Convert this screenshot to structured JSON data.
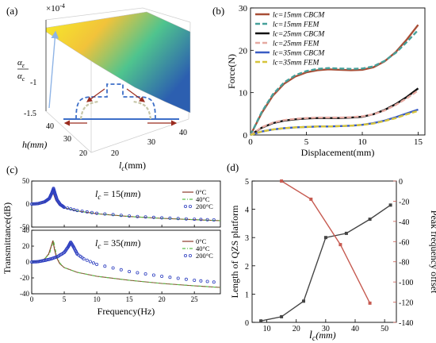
{
  "chart_data": [
    {
      "type": "surface",
      "panel_label": "(a)",
      "z_multiplier": "×10",
      "z_multiplier_exp": "-4",
      "z_label_num": "α",
      "z_label_num_sub": "ε",
      "z_label_den": "α",
      "z_label_den_sub": "c",
      "z_ticks": [
        "-1",
        "-1.5"
      ],
      "h_label": "h(mm)",
      "h_ticks": [
        "40",
        "30",
        "20"
      ],
      "lc_label_main": "l",
      "lc_label_sub": "c",
      "lc_label_unit": "(mm)",
      "lc_ticks": [
        "20",
        "30",
        "40"
      ],
      "colors": {
        "high": "#f7ee27",
        "mid": "#33b89a",
        "low": "#2c5fb0",
        "arrow": "#9b2c1f",
        "structure": "#3d6fc8",
        "strut": "#c6c6a8"
      }
    },
    {
      "type": "line",
      "panel_label": "(b)",
      "xlabel": "Displacement(mm)",
      "ylabel": "Force(N)",
      "xlim": [
        0,
        15.6
      ],
      "ylim": [
        0,
        30
      ],
      "xticks": [
        "0",
        "5",
        "10",
        "15"
      ],
      "yticks": [
        "0",
        "10",
        "20",
        "30"
      ],
      "series": [
        {
          "name": "lc=15mm CBCM",
          "color": "#a84e36",
          "style": "solid",
          "x": [
            0,
            1,
            2,
            3,
            4,
            5,
            6,
            7,
            8,
            9,
            10,
            11,
            12,
            13,
            14,
            15
          ],
          "y": [
            0,
            5.2,
            9.3,
            12.1,
            13.8,
            14.8,
            15.3,
            15.5,
            15.4,
            15.3,
            15.4,
            16,
            17.4,
            19.6,
            22.6,
            26
          ]
        },
        {
          "name": "lc=15mm FEM",
          "color": "#46a09a",
          "style": "dashed",
          "x": [
            0,
            1,
            2,
            3,
            4,
            5,
            6,
            7,
            8,
            9,
            10,
            11,
            12,
            13,
            14,
            15
          ],
          "y": [
            0,
            5.4,
            9.6,
            12.4,
            14.1,
            15.1,
            15.6,
            15.8,
            15.7,
            15.6,
            15.7,
            16.2,
            17.5,
            19.4,
            22,
            24.8
          ]
        },
        {
          "name": "lc=25mm CBCM",
          "color": "#111111",
          "style": "solid",
          "x": [
            0,
            1,
            2,
            3,
            4,
            5,
            6,
            7,
            8,
            9,
            10,
            11,
            12,
            13,
            14,
            15
          ],
          "y": [
            0,
            1.7,
            2.8,
            3.4,
            3.7,
            3.9,
            4.0,
            4.0,
            4.0,
            4.1,
            4.3,
            4.9,
            5.9,
            7.3,
            9.0,
            11.0
          ]
        },
        {
          "name": "lc=25mm FEM",
          "color": "#e6a9a1",
          "style": "dashed",
          "x": [
            0,
            1,
            2,
            3,
            4,
            5,
            6,
            7,
            8,
            9,
            10,
            11,
            12,
            13,
            14,
            15
          ],
          "y": [
            0,
            1.8,
            2.9,
            3.5,
            3.8,
            4.0,
            4.1,
            4.1,
            4.1,
            4.2,
            4.4,
            4.9,
            5.8,
            7.1,
            8.7,
            10.5
          ]
        },
        {
          "name": "lc=35mm CBCM",
          "color": "#3a5cc4",
          "style": "solid",
          "x": [
            0,
            1,
            2,
            3,
            4,
            5,
            6,
            7,
            8,
            9,
            10,
            11,
            12,
            13,
            14,
            15
          ],
          "y": [
            0,
            0.8,
            1.3,
            1.6,
            1.8,
            1.9,
            2.0,
            2.0,
            2.1,
            2.2,
            2.4,
            2.8,
            3.4,
            4.2,
            5.1,
            6.0
          ]
        },
        {
          "name": "lc=35mm FEM",
          "color": "#d6c43a",
          "style": "dashed",
          "x": [
            0,
            1,
            2,
            3,
            4,
            5,
            6,
            7,
            8,
            9,
            10,
            11,
            12,
            13,
            14,
            15
          ],
          "y": [
            0,
            0.8,
            1.3,
            1.6,
            1.8,
            1.9,
            2.0,
            2.0,
            2.1,
            2.2,
            2.4,
            2.7,
            3.3,
            4.0,
            4.9,
            5.7
          ]
        }
      ]
    },
    {
      "type": "line",
      "panel_label": "(c)",
      "ylabel": "Transmittance(dB)",
      "xlabel": "Frequency(Hz)",
      "subplots": [
        {
          "annotation_main": "l",
          "annotation_sub": "c",
          "annotation_rest": " = 15(",
          "annotation_unit": "mm",
          "annotation_close": ")",
          "xlim": [
            0,
            29
          ],
          "ylim": [
            -50,
            50
          ],
          "xticks": [
            "0",
            "5",
            "10",
            "15",
            "20",
            "25"
          ],
          "yticks": [
            "50",
            "0",
            "-50"
          ],
          "series": [
            {
              "name": "0°C",
              "color": "#8b3a2a",
              "style": "solid",
              "x": [
                0,
                1,
                2,
                2.6,
                3.0,
                3.2,
                3.4,
                3.7,
                4.2,
                5,
                7,
                10,
                15,
                20,
                25,
                29
              ],
              "y": [
                0,
                1,
                5,
                12,
                24,
                32,
                20,
                8,
                -2,
                -8,
                -15,
                -21,
                -27,
                -31,
                -34,
                -36
              ]
            },
            {
              "name": "40°C",
              "color": "#5cbf4a",
              "style": "dashdot",
              "x": [
                0,
                1,
                2,
                2.6,
                3.0,
                3.25,
                3.45,
                3.8,
                4.3,
                5,
                7,
                10,
                15,
                20,
                25,
                29
              ],
              "y": [
                0,
                1,
                5,
                12,
                24,
                33,
                21,
                8,
                -2,
                -8,
                -15,
                -21,
                -27,
                -31,
                -34,
                -36
              ]
            },
            {
              "name": "200°C",
              "color": "#2e3fc0",
              "style": "markers",
              "x": [
                0,
                1,
                2,
                2.7,
                3.1,
                3.35,
                3.6,
                3.9,
                4.4,
                5,
                7,
                10,
                15,
                20,
                25,
                29
              ],
              "y": [
                0,
                1,
                5,
                12,
                24,
                34,
                22,
                9,
                -1,
                -7,
                -14,
                -20,
                -26,
                -30,
                -33,
                -35
              ]
            }
          ]
        },
        {
          "annotation_main": "l",
          "annotation_sub": "c",
          "annotation_rest": " = 35(",
          "annotation_unit": "mm",
          "annotation_close": ")",
          "xlim": [
            0,
            29
          ],
          "ylim": [
            -40,
            40
          ],
          "xticks": [
            "0",
            "5",
            "10",
            "15",
            "20",
            "25"
          ],
          "yticks": [
            "40",
            "20",
            "0",
            "-20",
            "-40"
          ],
          "xticks_show": [
            "0",
            "5",
            "10",
            "15",
            "20",
            "25"
          ],
          "series": [
            {
              "name": "0°C",
              "color": "#8b3a2a",
              "style": "solid",
              "x": [
                0,
                1,
                2,
                2.6,
                3.0,
                3.25,
                3.5,
                3.8,
                4.3,
                5,
                7,
                10,
                15,
                20,
                25,
                29
              ],
              "y": [
                0,
                1,
                4,
                10,
                20,
                27,
                16,
                6,
                -2,
                -7,
                -13,
                -18,
                -23,
                -27,
                -30,
                -32
              ]
            },
            {
              "name": "40°C",
              "color": "#5cbf4a",
              "style": "dashdot",
              "x": [
                0,
                1,
                2,
                2.7,
                3.1,
                3.35,
                3.6,
                3.9,
                4.4,
                5,
                7,
                10,
                15,
                20,
                25,
                29
              ],
              "y": [
                0,
                1,
                4,
                10,
                20,
                27,
                17,
                6,
                -2,
                -7,
                -13,
                -18,
                -23,
                -27,
                -30,
                -32
              ]
            },
            {
              "name": "200°C",
              "color": "#2e3fc0",
              "style": "markers",
              "x": [
                0,
                1,
                2,
                3,
                4,
                5,
                5.6,
                6.0,
                6.5,
                7,
                8,
                10,
                15,
                20,
                25,
                29
              ],
              "y": [
                0,
                0.5,
                2,
                4,
                7,
                12,
                19,
                25,
                18,
                10,
                4,
                -3,
                -12,
                -18,
                -23,
                -26
              ]
            }
          ]
        }
      ]
    },
    {
      "type": "line",
      "panel_label": "(d)",
      "xlabel_main": "l",
      "xlabel_sub": "c",
      "xlabel_unit": "(mm)",
      "ylabel": "Length of QZS platform",
      "ylabel_right": "Peak frequency offset",
      "xlim": [
        5,
        54
      ],
      "ylim": [
        0,
        5
      ],
      "ylim_right": [
        -140,
        0
      ],
      "xticks": [
        "10",
        "20",
        "30",
        "40",
        "50"
      ],
      "yticks": [
        "0",
        "1",
        "2",
        "3",
        "4",
        "5"
      ],
      "yticks_right": [
        "0",
        "-20",
        "-40",
        "-60",
        "-80",
        "-100",
        "-120",
        "-140"
      ],
      "series": [
        {
          "name": "Length of QZS platform",
          "axis": "left",
          "color": "#444444",
          "x": [
            8,
            15,
            22.5,
            30,
            37,
            45,
            52
          ],
          "y": [
            0.05,
            0.2,
            0.75,
            3.0,
            3.15,
            3.65,
            4.15
          ]
        },
        {
          "name": "Peak frequency offset",
          "axis": "right",
          "color": "#c65a50",
          "x": [
            15,
            25,
            35,
            45
          ],
          "y": [
            0,
            -18,
            -63,
            -121
          ]
        }
      ]
    }
  ]
}
